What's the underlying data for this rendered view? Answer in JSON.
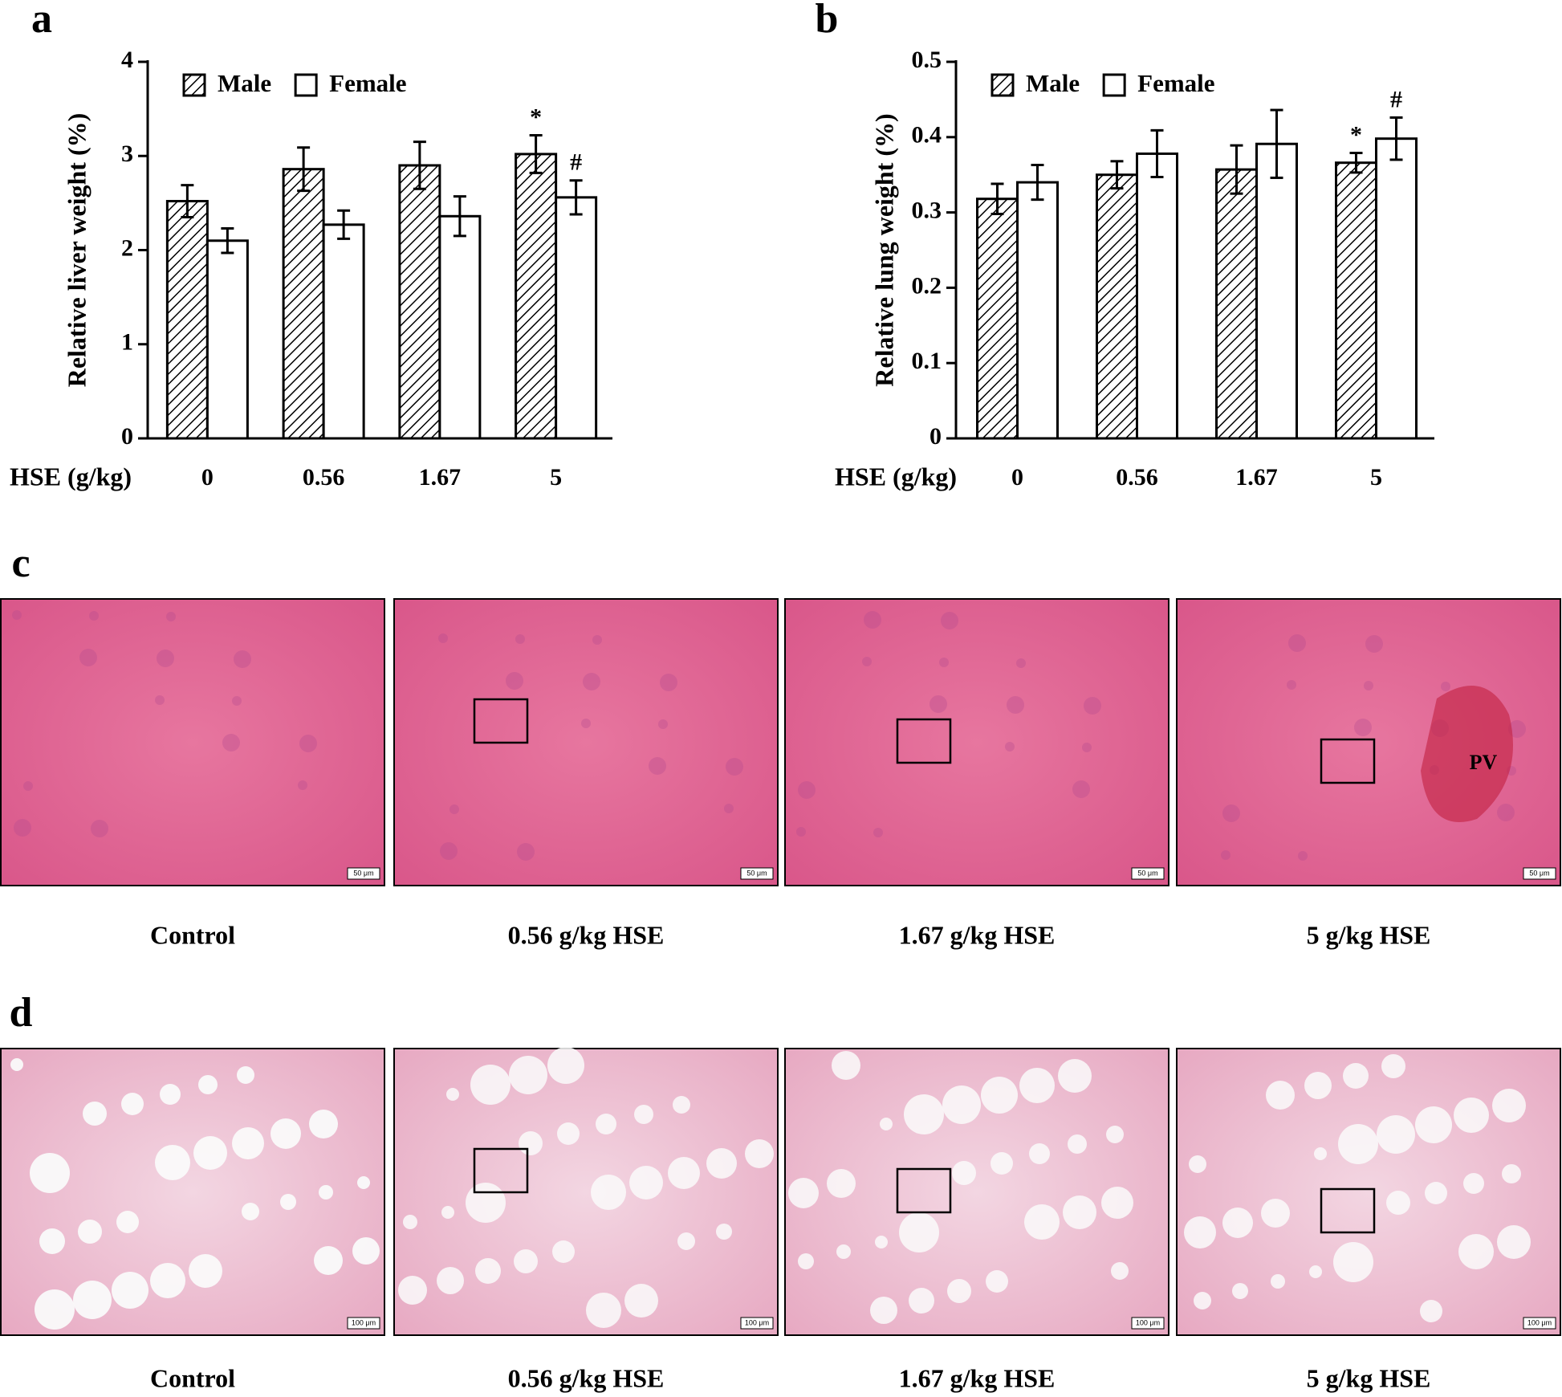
{
  "chart_data": [
    {
      "type": "bar",
      "label": "a",
      "ylabel": "Relative liver weight (%)",
      "xlabel": "HSE (g/kg)",
      "categories": [
        "0",
        "0.56",
        "1.67",
        "5"
      ],
      "series": [
        {
          "name": "Male",
          "color": "#000000",
          "hatch": true,
          "values": [
            2.52,
            2.86,
            2.9,
            3.02
          ],
          "errors": [
            0.17,
            0.23,
            0.25,
            0.2
          ],
          "annotations": [
            null,
            null,
            null,
            "*"
          ]
        },
        {
          "name": "Female",
          "color": "#ffffff",
          "hatch": false,
          "values": [
            2.1,
            2.27,
            2.36,
            2.56
          ],
          "errors": [
            0.13,
            0.15,
            0.21,
            0.18
          ],
          "annotations": [
            null,
            null,
            null,
            "#"
          ]
        }
      ],
      "ylim": [
        0,
        4
      ],
      "yticks": [
        0,
        1,
        2,
        3,
        4
      ],
      "legend": "top-left"
    },
    {
      "type": "bar",
      "label": "b",
      "ylabel": "Relative lung weight (%)",
      "xlabel": "HSE (g/kg)",
      "categories": [
        "0",
        "0.56",
        "1.67",
        "5"
      ],
      "series": [
        {
          "name": "Male",
          "color": "#000000",
          "hatch": true,
          "values": [
            0.318,
            0.35,
            0.357,
            0.366
          ],
          "errors": [
            0.02,
            0.018,
            0.032,
            0.013
          ],
          "annotations": [
            null,
            null,
            null,
            "*"
          ]
        },
        {
          "name": "Female",
          "color": "#ffffff",
          "hatch": false,
          "values": [
            0.34,
            0.378,
            0.391,
            0.398
          ],
          "errors": [
            0.023,
            0.031,
            0.045,
            0.028
          ],
          "annotations": [
            null,
            null,
            null,
            "#"
          ]
        }
      ],
      "ylim": [
        0,
        0.5
      ],
      "yticks": [
        0,
        0.1,
        0.2,
        0.3,
        0.4,
        0.5
      ],
      "legend": "top-left"
    }
  ],
  "histology": [
    {
      "label": "c",
      "annotation": "PV",
      "panels": [
        {
          "caption": "Control",
          "scale_bar": "50 μm"
        },
        {
          "caption": "0.56 g/kg HSE",
          "scale_bar": "50 μm"
        },
        {
          "caption": "1.67 g/kg HSE",
          "scale_bar": "50 μm"
        },
        {
          "caption": "5 g/kg HSE",
          "scale_bar": "50 μm"
        }
      ]
    },
    {
      "label": "d",
      "panels": [
        {
          "caption": "Control",
          "scale_bar": "100 μm"
        },
        {
          "caption": "0.56 g/kg HSE",
          "scale_bar": "100 μm"
        },
        {
          "caption": "1.67 g/kg HSE",
          "scale_bar": "100 μm"
        },
        {
          "caption": "5 g/kg HSE",
          "scale_bar": "100 μm"
        }
      ]
    }
  ]
}
